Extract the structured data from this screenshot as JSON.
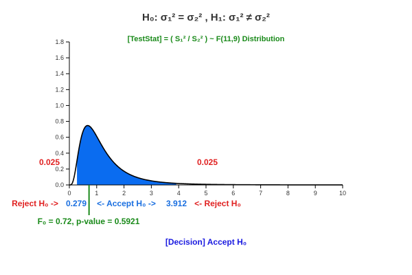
{
  "chart_data": {
    "type": "area",
    "title": "H₀: σ₁² = σ₂² , H₁: σ₁² ≠ σ₂²",
    "subtitle": "[TestStat] = ( S₁² / S₂² ) ~ F(11,9) Distribution",
    "distribution": {
      "name": "F",
      "df1": 11,
      "df2": 9
    },
    "xlim": [
      0,
      10
    ],
    "ylim": [
      0,
      1.8
    ],
    "x_ticks": [
      0,
      1,
      2,
      3,
      4,
      5,
      6,
      7,
      8,
      9,
      10
    ],
    "y_ticks": [
      0.0,
      0.2,
      0.4,
      0.6,
      0.8,
      1.0,
      1.2,
      1.4,
      1.6,
      1.8
    ],
    "y_tick_labels": [
      "0.0",
      "0.2",
      "0.4",
      "0.6",
      "0.8",
      "1.0",
      "1.2",
      "1.4",
      "1.6",
      "1.8"
    ],
    "critical_lower": 0.279,
    "critical_upper": 3.912,
    "test_statistic": 0.72,
    "alpha_left_label": "0.025",
    "alpha_right_label": "0.025",
    "reject_left_label": "Reject H₀ ->",
    "accept_label": "<- Accept H₀ ->",
    "reject_right_label": "<- Reject H₀",
    "lower_label": "0.279",
    "upper_label": "3.912",
    "stat_label": "F₀ = 0.72, p-value = 0.5921",
    "decision_label": "[Decision] Accept H₀",
    "colors": {
      "fill": "#0a6cf0",
      "curve": "#000000",
      "stat_line": "#1a8a1a",
      "reject": "#e02020",
      "accept": "#1a6fe0"
    }
  }
}
